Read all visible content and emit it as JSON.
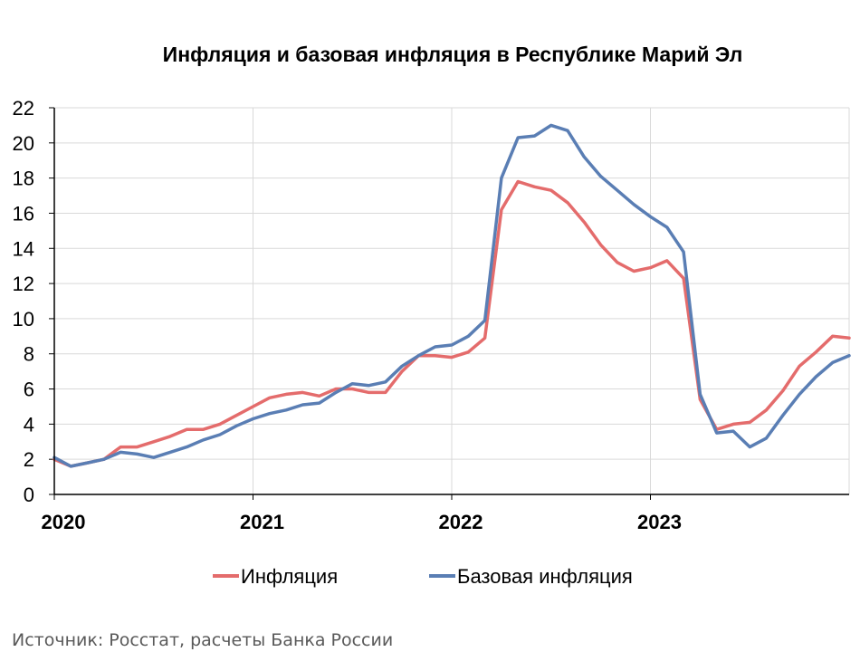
{
  "chart_data": {
    "type": "line",
    "title": "Инфляция и базовая инфляция в Республике Марий Эл",
    "ylim": [
      0,
      22
    ],
    "y_ticks": [
      0,
      2,
      4,
      6,
      8,
      10,
      12,
      14,
      16,
      18,
      20,
      22
    ],
    "x_ticks": [
      "2020",
      "2021",
      "2022",
      "2023"
    ],
    "x_range": [
      0,
      48
    ],
    "grid": true,
    "legend_position": "bottom",
    "series": [
      {
        "name": "Инфляция",
        "color": "#e46c6c",
        "x": [
          0,
          1,
          2,
          3,
          4,
          5,
          6,
          7,
          8,
          9,
          10,
          11,
          12,
          13,
          14,
          15,
          16,
          17,
          18,
          19,
          20,
          21,
          22,
          23,
          24,
          25,
          26,
          27,
          28,
          29,
          30,
          31,
          32,
          33,
          34,
          35,
          36,
          37,
          38,
          39,
          40,
          41,
          42,
          43,
          44,
          45,
          46,
          47,
          48
        ],
        "values": [
          2.0,
          1.6,
          1.8,
          2.0,
          2.7,
          2.7,
          3.0,
          3.3,
          3.7,
          3.7,
          4.0,
          4.5,
          5.0,
          5.5,
          5.7,
          5.8,
          5.6,
          6.0,
          6.0,
          5.8,
          5.8,
          7.0,
          7.9,
          7.9,
          7.8,
          8.1,
          8.9,
          16.2,
          17.8,
          17.5,
          17.3,
          16.6,
          15.5,
          14.2,
          13.2,
          12.7,
          12.9,
          13.3,
          12.3,
          5.4,
          3.7,
          4.0,
          4.1,
          4.8,
          5.9,
          7.3,
          8.1,
          9.0,
          8.9
        ]
      },
      {
        "name": "Базовая инфляция",
        "color": "#5a7eb4",
        "x": [
          0,
          1,
          2,
          3,
          4,
          5,
          6,
          7,
          8,
          9,
          10,
          11,
          12,
          13,
          14,
          15,
          16,
          17,
          18,
          19,
          20,
          21,
          22,
          23,
          24,
          25,
          26,
          27,
          28,
          29,
          30,
          31,
          32,
          33,
          34,
          35,
          36,
          37,
          38,
          39,
          40,
          41,
          42,
          43,
          44,
          45,
          46,
          47,
          48
        ],
        "values": [
          2.1,
          1.6,
          1.8,
          2.0,
          2.4,
          2.3,
          2.1,
          2.4,
          2.7,
          3.1,
          3.4,
          3.9,
          4.3,
          4.6,
          4.8,
          5.1,
          5.2,
          5.8,
          6.3,
          6.2,
          6.4,
          7.3,
          7.9,
          8.4,
          8.5,
          9.0,
          9.9,
          18.0,
          20.3,
          20.4,
          21.0,
          20.7,
          19.2,
          18.1,
          17.3,
          16.5,
          15.8,
          15.2,
          13.8,
          5.7,
          3.5,
          3.6,
          2.7,
          3.2,
          4.5,
          5.7,
          6.7,
          7.5,
          7.9
        ]
      }
    ]
  },
  "source": "Источник: Росстат, расчеты Банка России"
}
